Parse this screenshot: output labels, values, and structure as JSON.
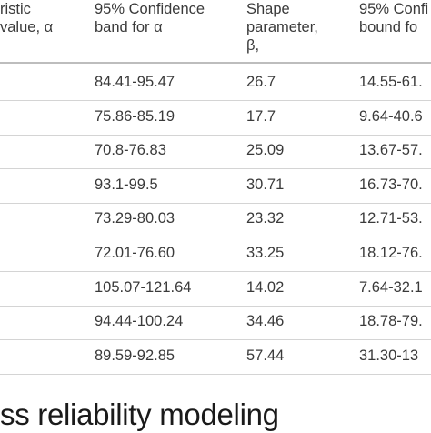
{
  "table": {
    "headers": [
      {
        "line1": "ristic",
        "line2": "value, α"
      },
      {
        "line1": "95% Confidence",
        "line2": "band for α"
      },
      {
        "line1": "Shape",
        "line2": "parameter,",
        "line3": "β,"
      },
      {
        "line1": "95% Confi",
        "line2": "bound fo"
      }
    ],
    "rows": [
      [
        "84.41-95.47",
        "26.7",
        "14.55-61."
      ],
      [
        "75.86-85.19",
        "17.7",
        "9.64-40.6"
      ],
      [
        "70.8-76.83",
        "25.09",
        "13.67-57."
      ],
      [
        "93.1-99.5",
        "30.71",
        "16.73-70."
      ],
      [
        "73.29-80.03",
        "23.32",
        "12.71-53."
      ],
      [
        "72.01-76.60",
        "33.25",
        "18.12-76."
      ],
      [
        "105.07-121.64",
        "14.02",
        "7.64-32.1"
      ],
      [
        "94.44-100.24",
        "34.46",
        "18.78-79."
      ],
      [
        "89.59-92.85",
        "57.44",
        "31.30-13"
      ]
    ]
  },
  "footer_text": "ss reliability modeling"
}
